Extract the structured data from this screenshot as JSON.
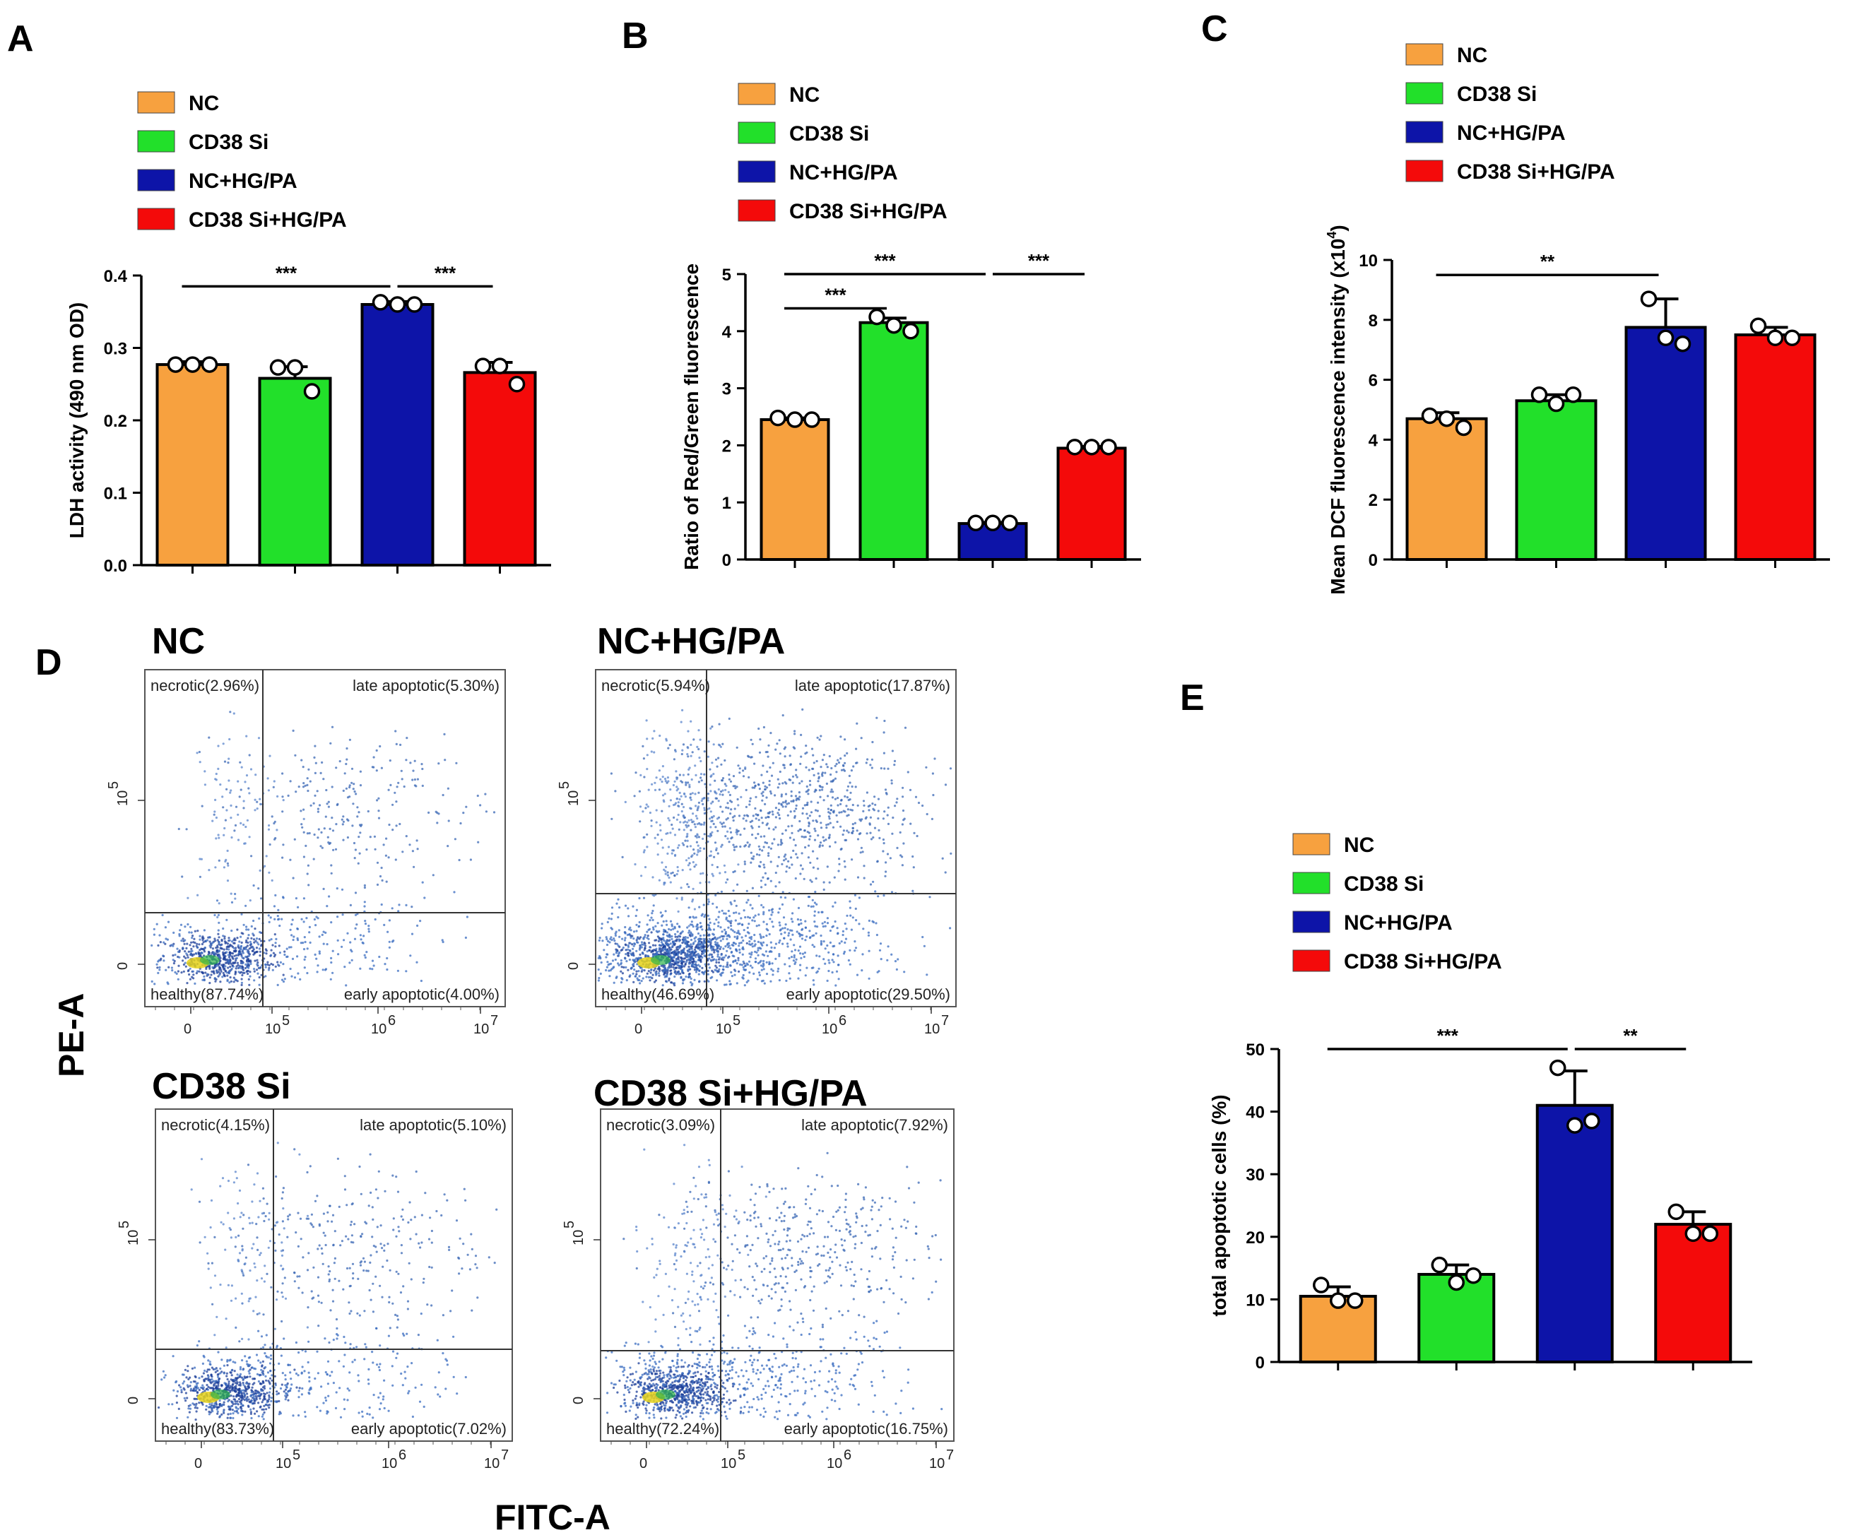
{
  "colors": {
    "NC": "#F7A13F",
    "CD38 Si": "#22E02A",
    "NC+HG/PA": "#0D14A8",
    "CD38 Si+HG/PA": "#F40A0A",
    "scatter": "#2A5CB0",
    "axis": "#000000"
  },
  "legend_labels": [
    "NC",
    "CD38 Si",
    "NC+HG/PA",
    "CD38 Si+HG/PA"
  ],
  "chart_data": [
    {
      "panel": "A",
      "type": "bar",
      "ylabel": "LDH activity (490 nm OD)",
      "ylim": [
        0,
        0.4
      ],
      "yticks": [
        "0.0",
        "0.1",
        "0.2",
        "0.3",
        "0.4"
      ],
      "ytick_values": [
        0,
        0.1,
        0.2,
        0.3,
        0.4
      ],
      "categories": [
        "NC",
        "CD38 Si",
        "NC+HG/PA",
        "CD38 Si+HG/PA"
      ],
      "values": [
        0.277,
        0.258,
        0.36,
        0.266
      ],
      "errors": [
        0.004,
        0.016,
        0.004,
        0.014
      ],
      "points": [
        [
          0.277,
          0.277,
          0.277
        ],
        [
          0.273,
          0.273,
          0.24
        ],
        [
          0.363,
          0.36,
          0.36
        ],
        [
          0.275,
          0.275,
          0.25
        ]
      ],
      "significance": [
        {
          "from": 0,
          "to": 2,
          "label": "***",
          "y": 0.385
        },
        {
          "from": 2,
          "to": 3,
          "label": "***",
          "y": 0.385
        }
      ]
    },
    {
      "panel": "B",
      "type": "bar",
      "ylabel": "Ratio of Red/Green fluorescence",
      "ylim": [
        0,
        5
      ],
      "yticks": [
        "0",
        "1",
        "2",
        "3",
        "4",
        "5"
      ],
      "ytick_values": [
        0,
        1,
        2,
        3,
        4,
        5
      ],
      "categories": [
        "NC",
        "CD38 Si",
        "NC+HG/PA",
        "CD38 Si+HG/PA"
      ],
      "values": [
        2.45,
        4.15,
        0.63,
        1.95
      ],
      "errors": [
        0.03,
        0.08,
        0.02,
        0.03
      ],
      "points": [
        [
          2.48,
          2.45,
          2.45
        ],
        [
          4.25,
          4.1,
          4.0
        ],
        [
          0.64,
          0.64,
          0.64
        ],
        [
          1.97,
          1.97,
          1.97
        ]
      ],
      "significance": [
        {
          "from": 0,
          "to": 1,
          "label": "***",
          "y": 4.4
        },
        {
          "from": 0,
          "to": 2,
          "label": "***",
          "y": 5.0
        },
        {
          "from": 2,
          "to": 3,
          "label": "***",
          "y": 5.0
        }
      ]
    },
    {
      "panel": "C",
      "type": "bar",
      "ylabel": "Mean DCF fluorescence intensity (x10",
      "ylabel_sup": "4",
      "ylabel_end": ")",
      "ylim": [
        0,
        10
      ],
      "yticks": [
        "0",
        "2",
        "4",
        "6",
        "8",
        "10"
      ],
      "ytick_values": [
        0,
        2,
        4,
        6,
        8,
        10
      ],
      "categories": [
        "NC",
        "CD38 Si",
        "NC+HG/PA",
        "CD38 Si+HG/PA"
      ],
      "values": [
        4.7,
        5.3,
        7.75,
        7.5
      ],
      "errors": [
        0.2,
        0.2,
        0.95,
        0.25
      ],
      "points": [
        [
          4.8,
          4.7,
          4.4
        ],
        [
          5.5,
          5.2,
          5.5
        ],
        [
          8.7,
          7.4,
          7.2
        ],
        [
          7.8,
          7.4,
          7.4
        ]
      ],
      "significance": [
        {
          "from": 0,
          "to": 2,
          "label": "**",
          "y": 9.5
        }
      ]
    },
    {
      "panel": "E",
      "type": "bar",
      "ylabel": "total apoptotic cells (%)",
      "ylim": [
        0,
        50
      ],
      "yticks": [
        "0",
        "10",
        "20",
        "30",
        "40",
        "50"
      ],
      "ytick_values": [
        0,
        10,
        20,
        30,
        40,
        50
      ],
      "categories": [
        "NC",
        "CD38 Si",
        "NC+HG/PA",
        "CD38 Si+HG/PA"
      ],
      "values": [
        10.5,
        14,
        41,
        22
      ],
      "errors": [
        1.5,
        1.5,
        5.5,
        2.0
      ],
      "points": [
        [
          12.3,
          9.8,
          9.8
        ],
        [
          15.5,
          12.7,
          13.8
        ],
        [
          47,
          37.8,
          38.5
        ],
        [
          24,
          20.5,
          20.5
        ]
      ],
      "significance": [
        {
          "from": 0,
          "to": 2,
          "label": "***",
          "y": 50
        },
        {
          "from": 2,
          "to": 3,
          "label": "**",
          "y": 50
        }
      ]
    }
  ],
  "panels": {
    "A": "A",
    "B": "B",
    "C": "C",
    "D": "D",
    "E": "E"
  },
  "flow": {
    "panel": "D",
    "x_axis_label": "FITC-A",
    "y_axis_label": "PE-A",
    "x_ticks": [
      "0",
      "10",
      "10",
      "10"
    ],
    "x_tick_exps": [
      "",
      "5",
      "6",
      "7"
    ],
    "y_ticks": [
      "0",
      "10"
    ],
    "y_tick_exps": [
      "",
      "5"
    ],
    "plots": [
      {
        "title": "NC",
        "necrotic": "necrotic(2.96%)",
        "late": "late apoptotic(5.30%)",
        "healthy": "healthy(87.74%)",
        "early": "early apoptotic(4.00%)",
        "density": 1.0
      },
      {
        "title": "NC+HG/PA",
        "necrotic": "necrotic(5.94%)",
        "late": "late apoptotic(17.87%)",
        "healthy": "healthy(46.69%)",
        "early": "early apoptotic(29.50%)",
        "density": 3.0
      },
      {
        "title": "CD38 Si",
        "necrotic": "necrotic(4.15%)",
        "late": "late apoptotic(5.10%)",
        "healthy": "healthy(83.73%)",
        "early": "early apoptotic(7.02%)",
        "density": 1.1
      },
      {
        "title": "CD38 Si+HG/PA",
        "necrotic": "necrotic(3.09%)",
        "late": "late apoptotic(7.92%)",
        "healthy": "healthy(72.24%)",
        "early": "early apoptotic(16.75%)",
        "density": 1.5
      }
    ]
  }
}
